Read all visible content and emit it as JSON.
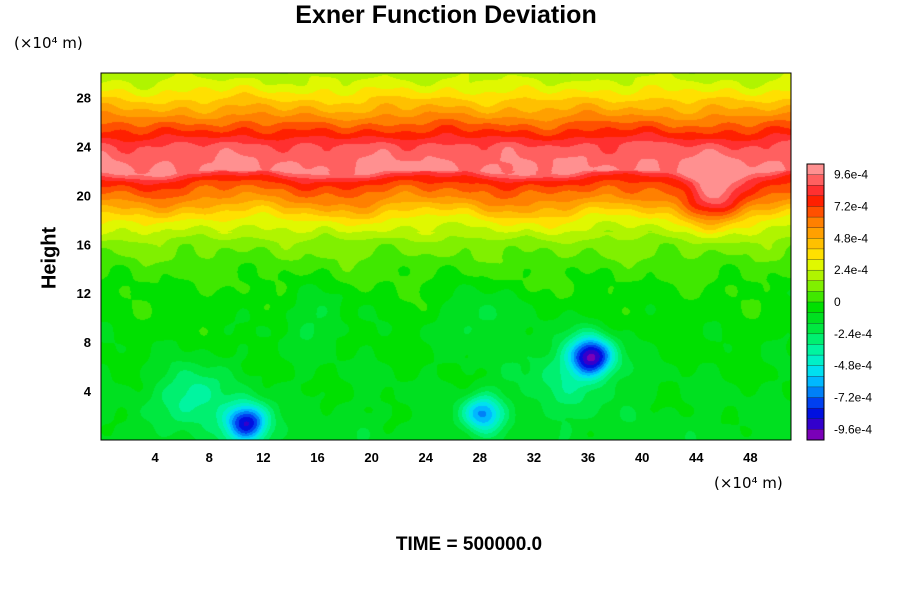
{
  "chart_data": {
    "type": "heatmap",
    "title": "Exner Function Deviation",
    "ylabel": "Height",
    "xlabel": "",
    "x_unit": "(×10⁴ m)",
    "y_unit": "(×10⁴ m)",
    "xlim": [
      0,
      51
    ],
    "ylim": [
      0,
      30
    ],
    "x_ticks": [
      "4",
      "8",
      "12",
      "16",
      "20",
      "24",
      "28",
      "32",
      "36",
      "40",
      "44",
      "48"
    ],
    "y_ticks": [
      "4",
      "8",
      "12",
      "16",
      "20",
      "24",
      "28"
    ],
    "x_tick_values": [
      4,
      8,
      12,
      16,
      20,
      24,
      28,
      32,
      36,
      40,
      44,
      48
    ],
    "y_tick_values": [
      4,
      8,
      12,
      16,
      20,
      24,
      28
    ],
    "colorbar": {
      "min": -0.00104,
      "max": 0.00104,
      "levels": 26,
      "tick_labels": [
        "9.6e-4",
        "7.2e-4",
        "4.8e-4",
        "2.4e-4",
        "0",
        "-2.4e-4",
        "-4.8e-4",
        "-7.2e-4",
        "-9.6e-4"
      ],
      "tick_values": [
        0.00096,
        0.00072,
        0.00048,
        0.00024,
        0,
        -0.00024,
        -0.00048,
        -0.00072,
        -0.00096
      ],
      "palette": [
        "#7a00b8",
        "#3300cc",
        "#0010e0",
        "#0040f0",
        "#0080f8",
        "#00b8ff",
        "#00e0f0",
        "#00f0c8",
        "#00f5a0",
        "#00f070",
        "#00e840",
        "#00e020",
        "#00e000",
        "#40e800",
        "#80f000",
        "#b0f400",
        "#e0f800",
        "#ffe000",
        "#ffc000",
        "#ffa000",
        "#ff8000",
        "#ff5000",
        "#ff2000",
        "#ff3030",
        "#ff6060",
        "#ff9090"
      ]
    },
    "field": {
      "vertical_profile": [
        {
          "y": 0,
          "value": -0.00012
        },
        {
          "y": 4,
          "value": -9e-05
        },
        {
          "y": 8,
          "value": -6e-05
        },
        {
          "y": 12,
          "value": -2e-05
        },
        {
          "y": 14,
          "value": 3e-05
        },
        {
          "y": 16,
          "value": 0.00012
        },
        {
          "y": 18,
          "value": 0.00032
        },
        {
          "y": 19.5,
          "value": 0.00055
        },
        {
          "y": 20.5,
          "value": 0.00066
        },
        {
          "y": 21.3,
          "value": 0.00078
        },
        {
          "y": 22,
          "value": 0.00098
        },
        {
          "y": 23,
          "value": 0.00095
        },
        {
          "y": 24,
          "value": 0.0009
        },
        {
          "y": 25,
          "value": 0.00076
        },
        {
          "y": 26,
          "value": 0.00062
        },
        {
          "y": 27,
          "value": 0.00049
        },
        {
          "y": 28,
          "value": 0.00038
        },
        {
          "y": 29,
          "value": 0.00027
        },
        {
          "y": 30,
          "value": 0.0002
        }
      ],
      "anomalies": [
        {
          "x": 10.8,
          "y": 1.4,
          "value": -0.0008,
          "radius": 1.6
        },
        {
          "x": 28.2,
          "y": 2.2,
          "value": -0.00055,
          "radius": 1.5
        },
        {
          "x": 36.3,
          "y": 6.8,
          "value": -0.0008,
          "radius": 1.6
        },
        {
          "x": 6.8,
          "y": 3.6,
          "value": -0.0003,
          "radius": 2.4
        },
        {
          "x": 34.5,
          "y": 5.5,
          "value": -0.0002,
          "radius": 3.5
        },
        {
          "x": 28.0,
          "y": 10.0,
          "value": -0.00015,
          "radius": 2.5
        },
        {
          "x": 16.0,
          "y": 10.0,
          "value": -0.00012,
          "radius": 2.5
        },
        {
          "x": 45.5,
          "y": 19.8,
          "value": 0.00035,
          "radius": 2.2
        }
      ]
    }
  },
  "footer": {
    "time_label": "TIME = 500000.0"
  }
}
